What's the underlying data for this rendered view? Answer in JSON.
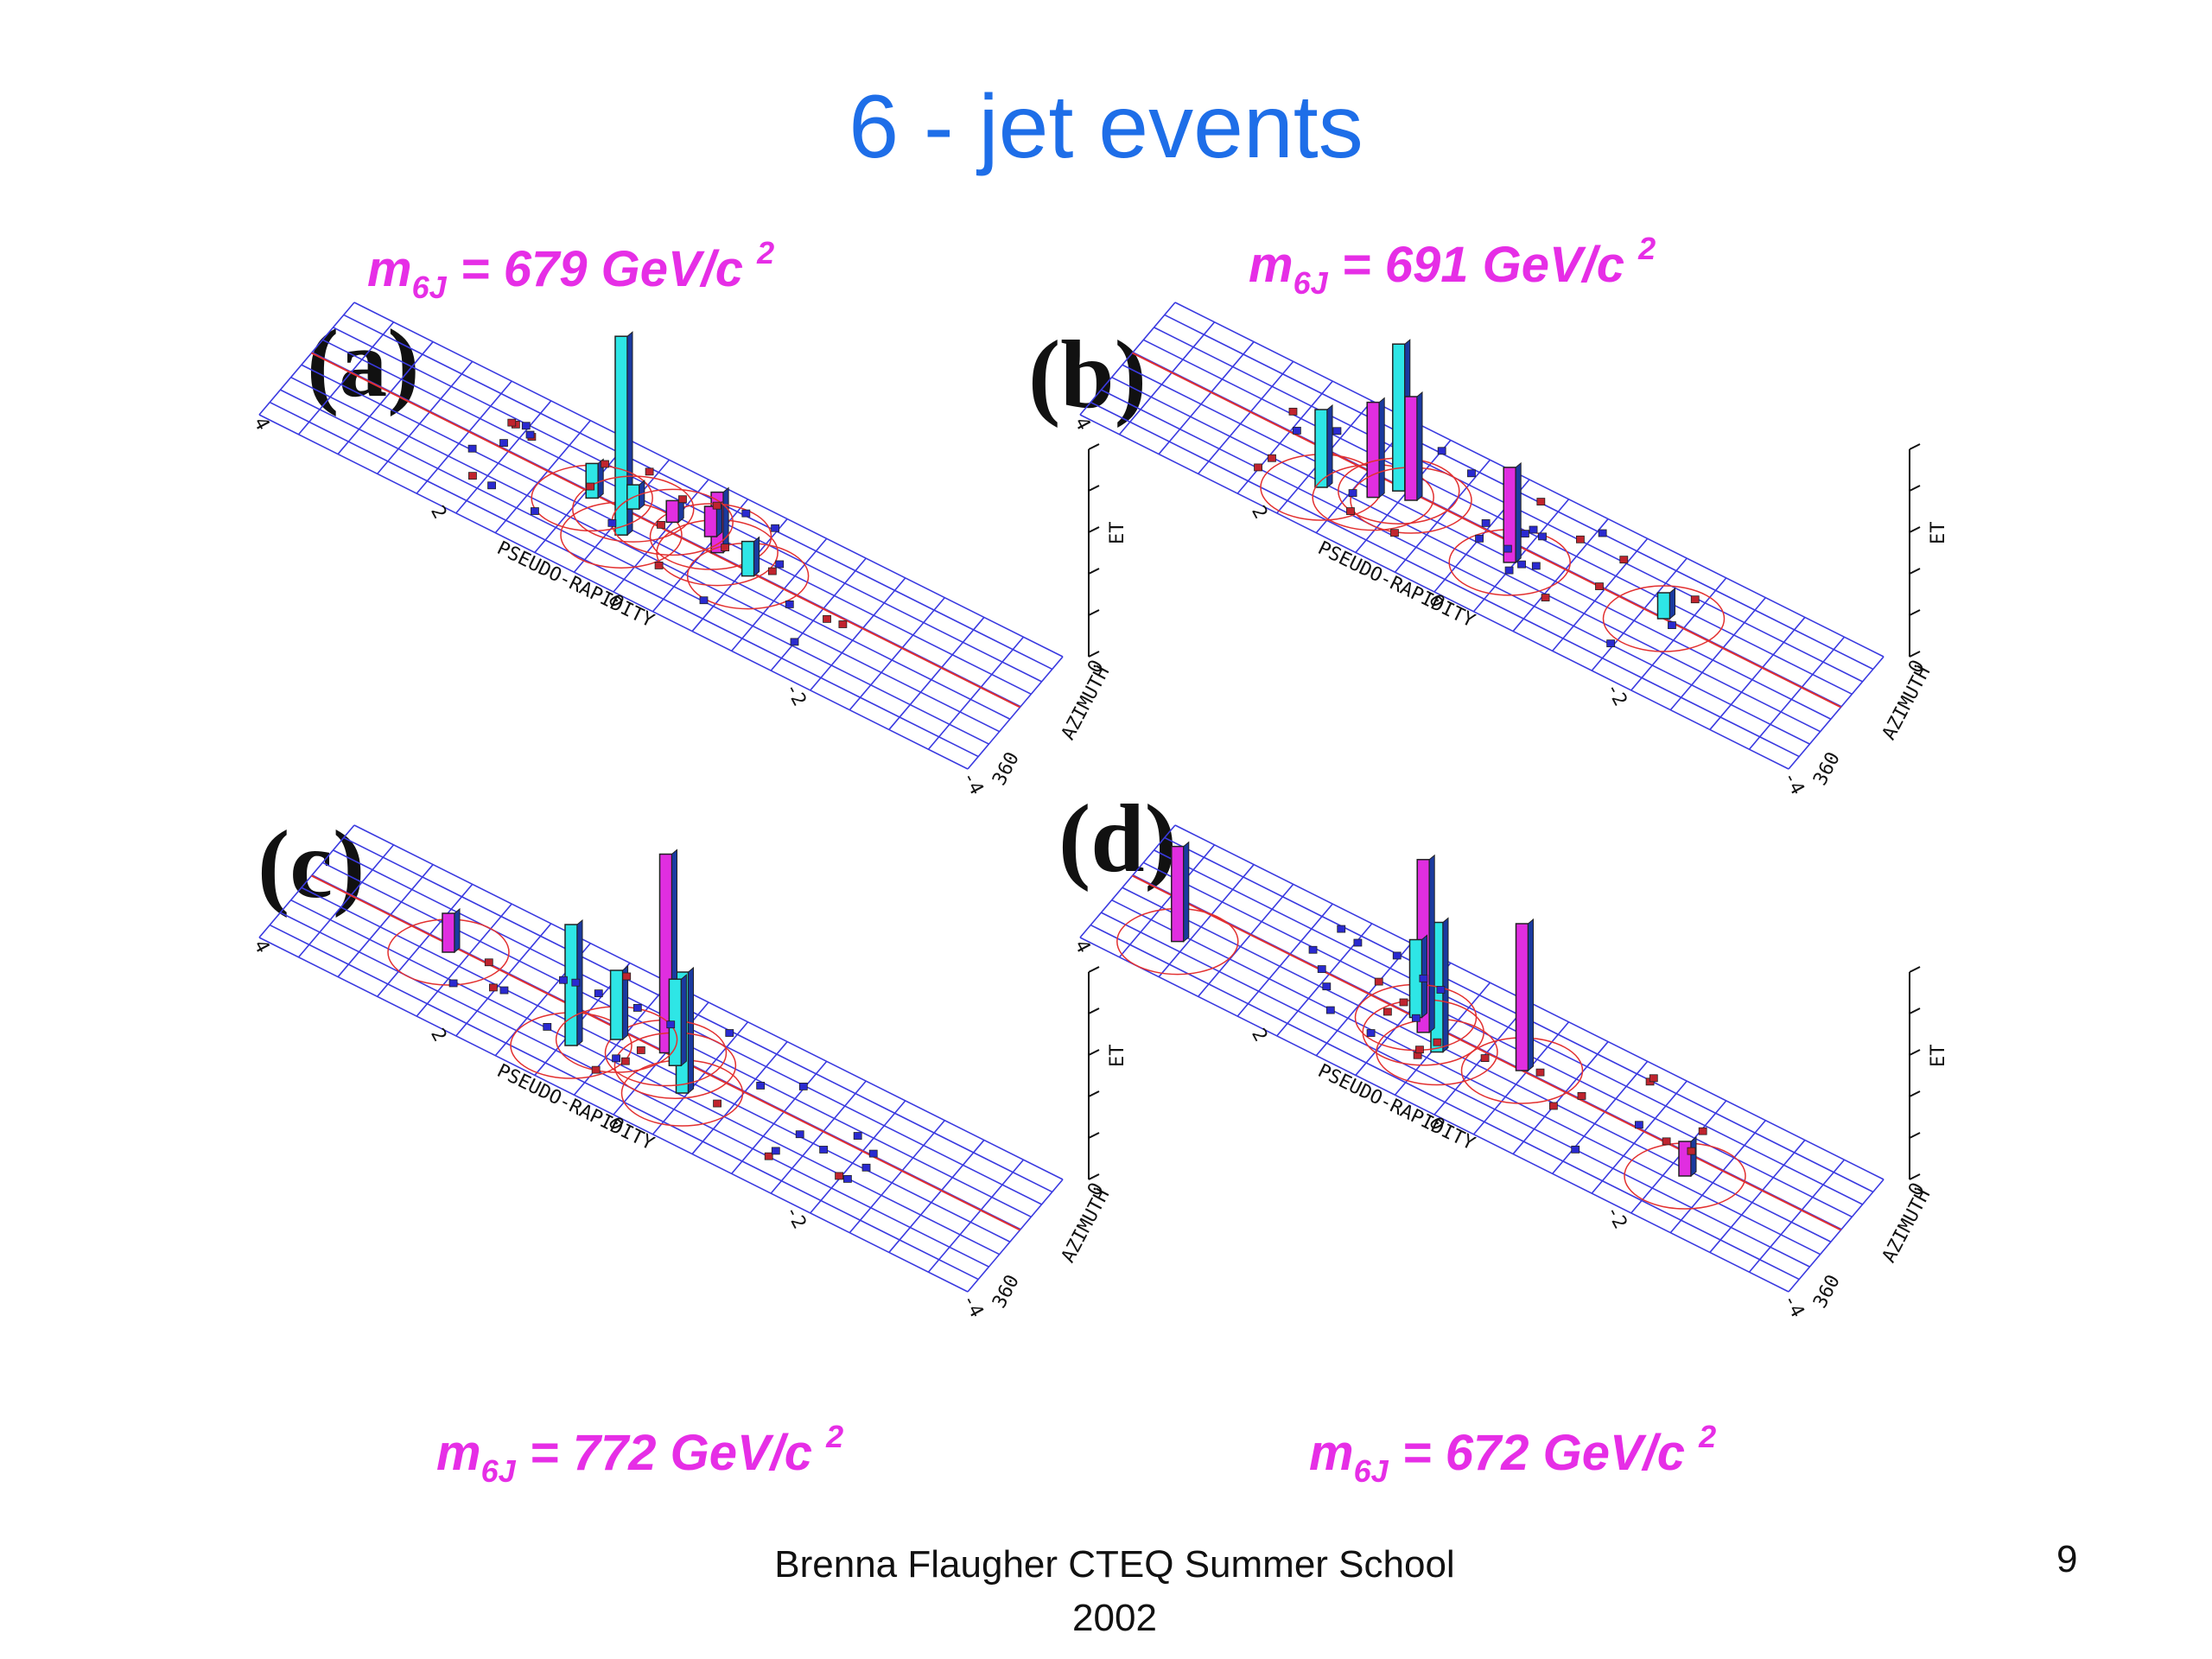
{
  "slide": {
    "title": "6 - jet events",
    "footer": "Brenna Flaugher CTEQ Summer School 2002",
    "page_number": "9"
  },
  "panels": [
    {
      "id": "a",
      "letter": "(a)",
      "mass": {
        "prefix": "m",
        "sub": "6J",
        "text": " = 679 GeV/c ",
        "sup": "2"
      },
      "axes": {
        "et": "ET",
        "pseudo": "PSEUDO-RAPIDITY",
        "azimuth": "AZIMUTH",
        "eta_ticks": [
          "4",
          "2",
          "0",
          "-2",
          "-4"
        ],
        "phi_ticks": [
          "0",
          "360"
        ]
      },
      "towers": [
        [
          0.46,
          0.38,
          230,
          "cyan"
        ],
        [
          0.57,
          0.57,
          70,
          "magenta"
        ],
        [
          0.4,
          0.52,
          40,
          "cyan"
        ],
        [
          0.55,
          0.65,
          35,
          "magenta"
        ],
        [
          0.45,
          0.58,
          28,
          "cyan"
        ],
        [
          0.62,
          0.52,
          40,
          "cyan"
        ],
        [
          0.5,
          0.62,
          25,
          "magenta"
        ]
      ]
    },
    {
      "id": "b",
      "letter": "(b)",
      "mass": {
        "prefix": "m",
        "sub": "6J",
        "text": " = 691 GeV/c ",
        "sup": "2"
      },
      "axes": {
        "et": "ET",
        "pseudo": "PSEUDO-RAPIDITY",
        "azimuth": "AZIMUTH",
        "eta_ticks": [
          "4",
          "2",
          "0",
          "-2",
          "-4"
        ],
        "phi_ticks": [
          "0",
          "360"
        ]
      },
      "towers": [
        [
          0.3,
          0.3,
          90,
          "cyan"
        ],
        [
          0.36,
          0.4,
          110,
          "magenta"
        ],
        [
          0.38,
          0.52,
          170,
          "cyan"
        ],
        [
          0.4,
          0.5,
          120,
          "magenta"
        ],
        [
          0.55,
          0.42,
          110,
          "magenta"
        ],
        [
          0.75,
          0.55,
          30,
          "cyan"
        ]
      ]
    },
    {
      "id": "c",
      "letter": "(c)",
      "mass": {
        "prefix": "m",
        "sub": "6J",
        "text": " = 772 GeV/c ",
        "sup": "2"
      },
      "axes": {
        "et": "ET",
        "pseudo": "PSEUDO-RAPIDITY",
        "azimuth": "AZIMUTH",
        "eta_ticks": [
          "4",
          "2",
          "0",
          "-2",
          "-4"
        ],
        "phi_ticks": [
          "0",
          "360"
        ]
      },
      "towers": [
        [
          0.4,
          0.3,
          140,
          "cyan"
        ],
        [
          0.55,
          0.35,
          140,
          "cyan"
        ],
        [
          0.5,
          0.55,
          230,
          "magenta"
        ],
        [
          0.52,
          0.5,
          100,
          "cyan"
        ],
        [
          0.2,
          0.5,
          45,
          "magenta"
        ],
        [
          0.44,
          0.48,
          80,
          "cyan"
        ]
      ]
    },
    {
      "id": "d",
      "letter": "(d)",
      "mass": {
        "prefix": "m",
        "sub": "6J",
        "text": " = 672 GeV/c ",
        "sup": "2"
      },
      "axes": {
        "et": "ET",
        "pseudo": "PSEUDO-RAPIDITY",
        "azimuth": "AZIMUTH",
        "eta_ticks": [
          "4",
          "2",
          "0",
          "-2",
          "-4"
        ],
        "phi_ticks": [
          "0",
          "360"
        ]
      },
      "towers": [
        [
          0.1,
          0.28,
          110,
          "magenta"
        ],
        [
          0.45,
          0.4,
          150,
          "cyan"
        ],
        [
          0.42,
          0.48,
          200,
          "magenta"
        ],
        [
          0.55,
          0.55,
          170,
          "magenta"
        ],
        [
          0.4,
          0.55,
          90,
          "cyan"
        ],
        [
          0.8,
          0.4,
          40,
          "magenta"
        ]
      ]
    }
  ]
}
